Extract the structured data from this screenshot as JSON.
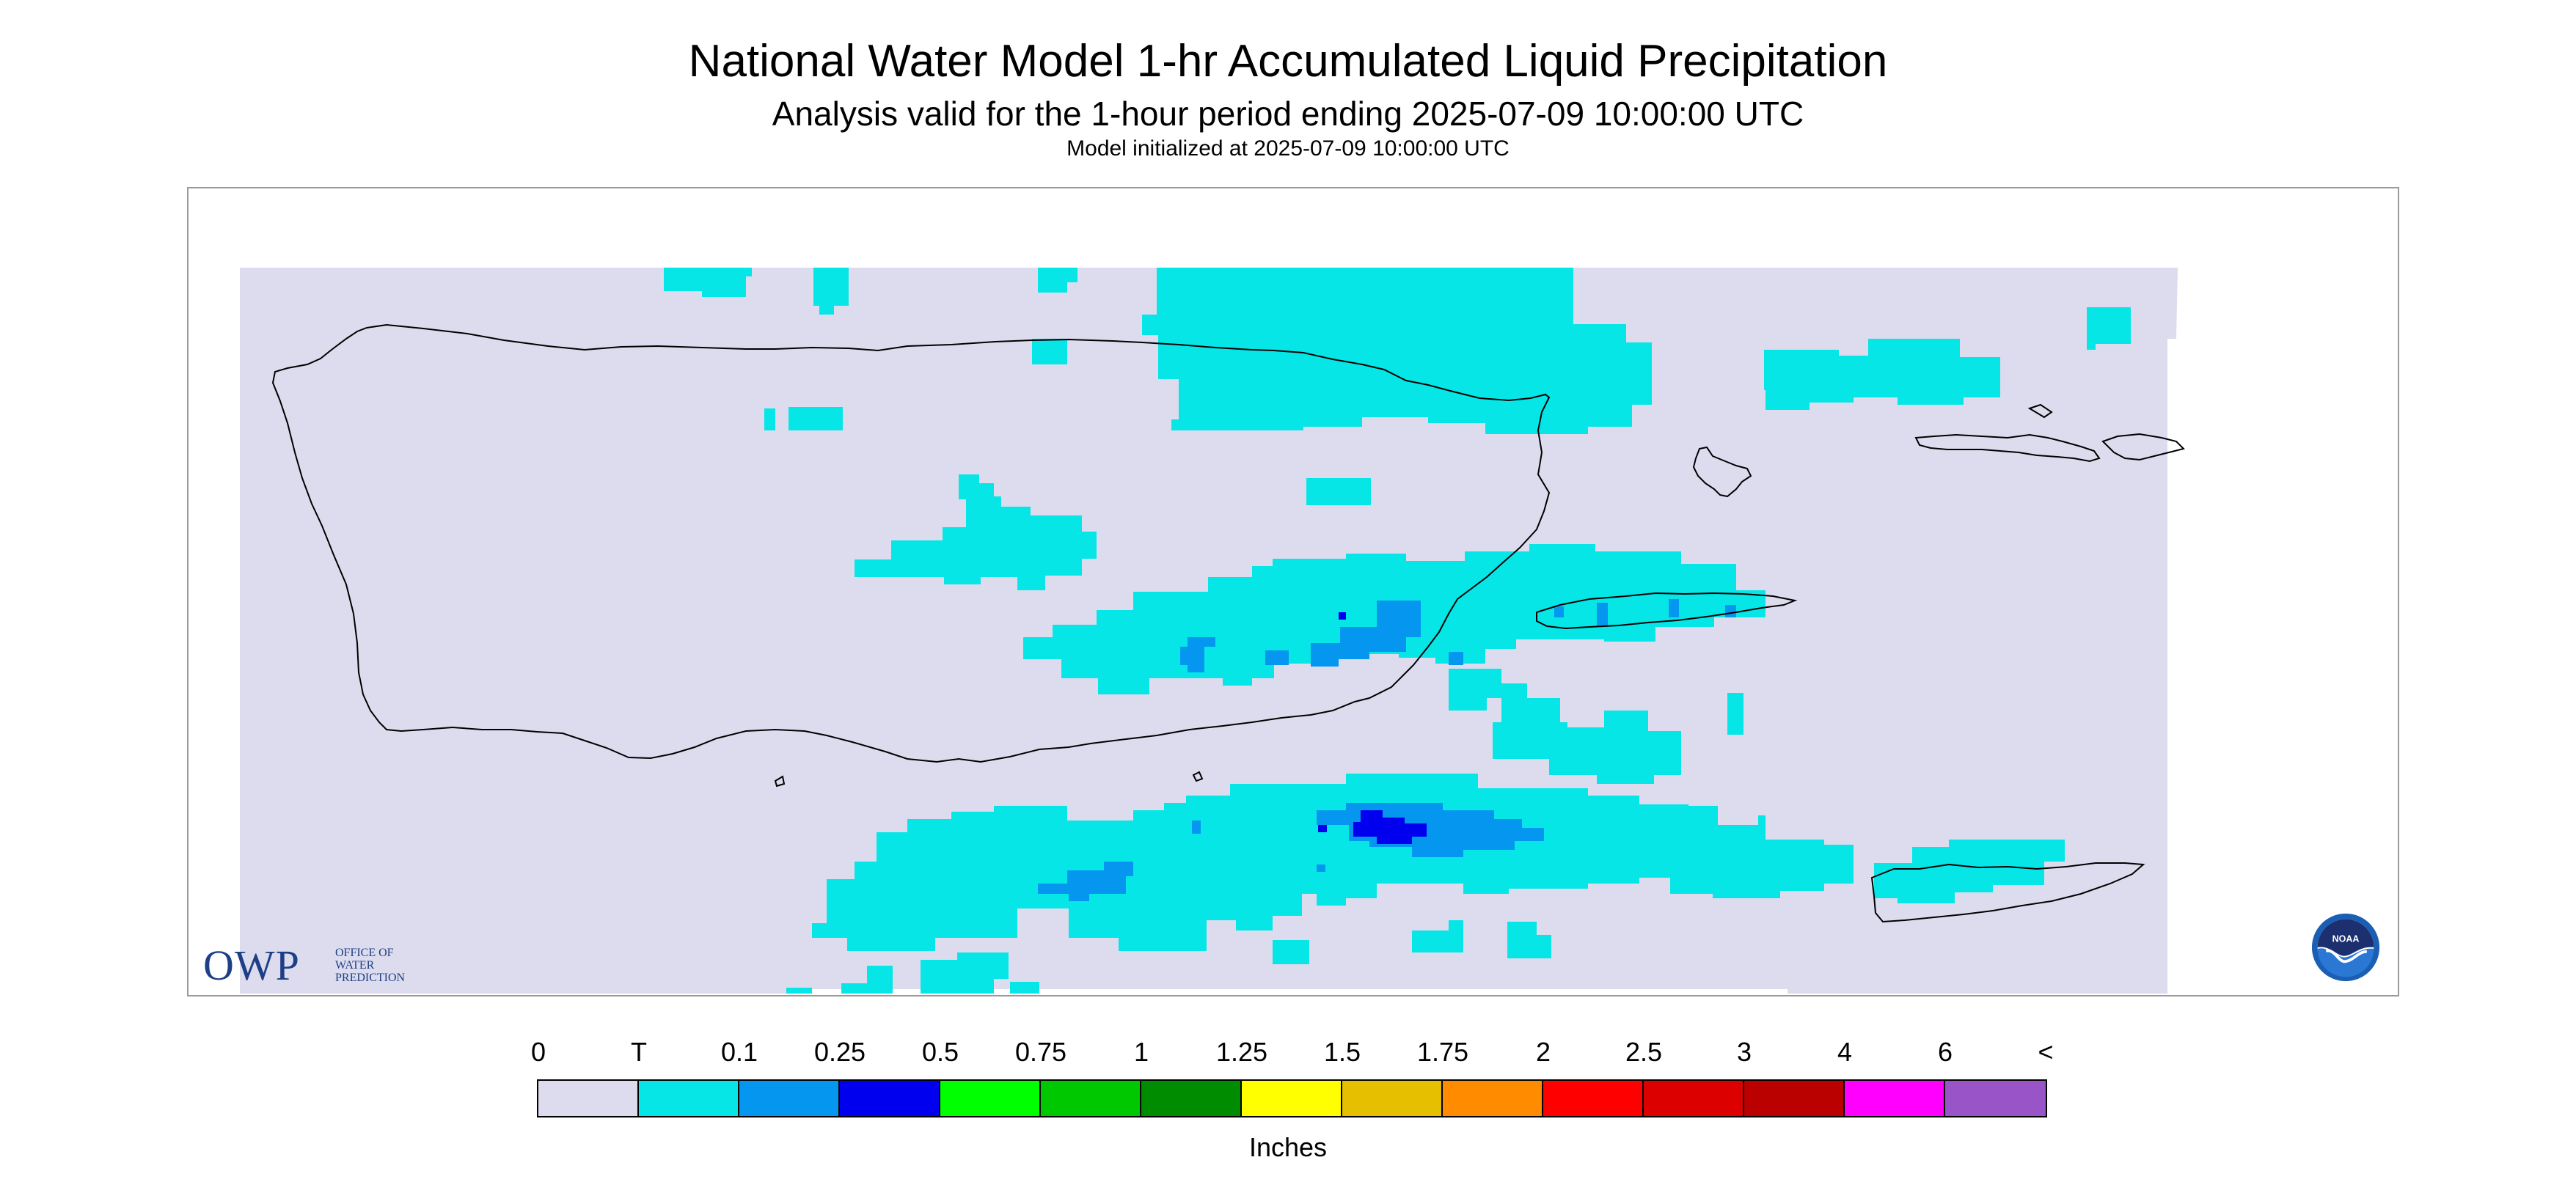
{
  "title": "National Water Model 1-hr Accumulated Liquid Precipitation",
  "subtitle": "Analysis valid for the 1-hour period ending 2025-07-09 10:00:00 UTC",
  "init_line": "Model initialized at 2025-07-09 10:00:00 UTC",
  "map": {
    "background_color": "#dcdcee",
    "coastline_color": "#000000"
  },
  "logos": {
    "owp": {
      "letters": "OWP",
      "lines": [
        "OFFICE OF",
        "WATER",
        "PREDICTION"
      ],
      "color": "#1d3f86"
    },
    "noaa": {
      "text": "NOAA",
      "icon": "noaa-seal"
    }
  },
  "legend": {
    "units": "Inches",
    "labels": [
      "0",
      "T",
      "0.1",
      "0.25",
      "0.5",
      "0.75",
      "1",
      "1.25",
      "1.5",
      "1.75",
      "2",
      "2.5",
      "3",
      "4",
      "6",
      "<"
    ],
    "colors": [
      "#dcdcee",
      "#06e6e6",
      "#0596f0",
      "#0000ee",
      "#00ff00",
      "#00c800",
      "#008c00",
      "#ffff00",
      "#e6c000",
      "#ff8c00",
      "#ff0000",
      "#dd0000",
      "#bb0000",
      "#ff00ff",
      "#9955c8"
    ]
  }
}
